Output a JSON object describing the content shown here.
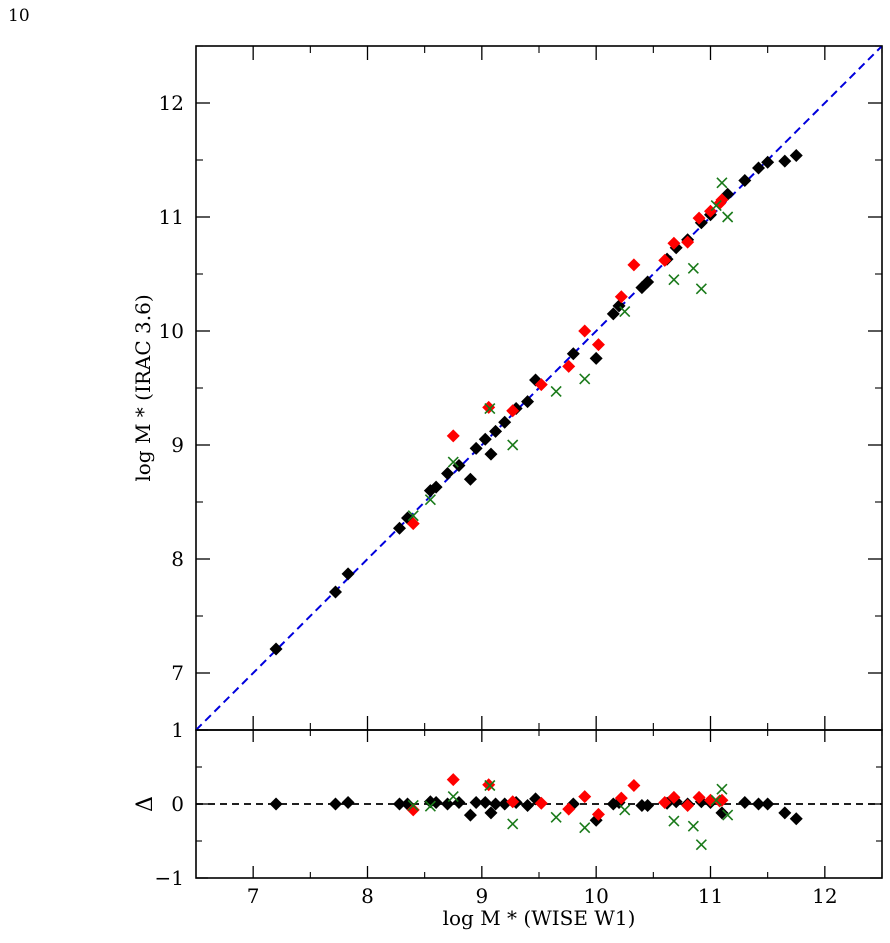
{
  "page": {
    "number": "10"
  },
  "colors": {
    "identity_line": "#0000dd",
    "black": "#000000",
    "red": "#ff0000",
    "green": "#1a7a1a"
  },
  "chart_data": [
    {
      "type": "scatter",
      "title": "",
      "xlabel": "log M * (WISE W1)",
      "ylabel": "log M * (IRAC 3.6)",
      "xlim": [
        6.5,
        12.5
      ],
      "ylim": [
        6.5,
        12.5
      ],
      "xticks": [
        7,
        8,
        9,
        10,
        11,
        12
      ],
      "yticks": [
        7,
        8,
        9,
        10,
        11,
        12
      ],
      "ytick_labels": [
        "7",
        "8",
        "9",
        "10",
        "11",
        "12"
      ],
      "grid": false,
      "reference_line": {
        "style": "dashed",
        "color": "#0000dd",
        "relation": "y = x"
      },
      "series": [
        {
          "marker": "diamond",
          "color": "#000000",
          "points": [
            [
              7.2,
              7.21
            ],
            [
              7.72,
              7.71
            ],
            [
              7.83,
              7.87
            ],
            [
              8.28,
              8.27
            ],
            [
              8.35,
              8.36
            ],
            [
              8.55,
              8.6
            ],
            [
              8.6,
              8.63
            ],
            [
              8.7,
              8.75
            ],
            [
              8.8,
              8.82
            ],
            [
              8.9,
              8.7
            ],
            [
              8.95,
              8.97
            ],
            [
              9.03,
              9.05
            ],
            [
              9.08,
              8.92
            ],
            [
              9.12,
              9.12
            ],
            [
              9.2,
              9.2
            ],
            [
              9.3,
              9.32
            ],
            [
              9.4,
              9.38
            ],
            [
              9.47,
              9.57
            ],
            [
              9.8,
              9.8
            ],
            [
              10.0,
              9.76
            ],
            [
              10.15,
              10.15
            ],
            [
              10.2,
              10.22
            ],
            [
              10.4,
              10.38
            ],
            [
              10.45,
              10.43
            ],
            [
              10.62,
              10.63
            ],
            [
              10.7,
              10.73
            ],
            [
              10.8,
              10.8
            ],
            [
              10.92,
              10.95
            ],
            [
              11.0,
              11.02
            ],
            [
              11.15,
              11.2
            ],
            [
              11.3,
              11.32
            ],
            [
              11.42,
              11.43
            ],
            [
              11.5,
              11.48
            ],
            [
              11.65,
              11.49
            ],
            [
              11.75,
              11.54
            ]
          ]
        },
        {
          "marker": "diamond",
          "color": "#ff0000",
          "points": [
            [
              8.4,
              8.31
            ],
            [
              8.75,
              9.08
            ],
            [
              9.06,
              9.33
            ],
            [
              9.27,
              9.3
            ],
            [
              9.52,
              9.53
            ],
            [
              9.76,
              9.69
            ],
            [
              9.9,
              10.0
            ],
            [
              10.02,
              9.88
            ],
            [
              10.22,
              10.3
            ],
            [
              10.33,
              10.58
            ],
            [
              10.6,
              10.62
            ],
            [
              10.68,
              10.77
            ],
            [
              10.8,
              10.78
            ],
            [
              10.9,
              10.99
            ],
            [
              11.0,
              11.05
            ],
            [
              11.08,
              11.12
            ],
            [
              11.1,
              11.15
            ]
          ]
        },
        {
          "marker": "x",
          "color": "#1a7a1a",
          "points": [
            [
              8.4,
              8.38
            ],
            [
              8.55,
              8.52
            ],
            [
              8.75,
              8.85
            ],
            [
              9.07,
              9.32
            ],
            [
              9.27,
              9.0
            ],
            [
              9.65,
              9.47
            ],
            [
              9.9,
              9.58
            ],
            [
              10.25,
              10.17
            ],
            [
              10.68,
              10.45
            ],
            [
              10.85,
              10.55
            ],
            [
              10.92,
              10.37
            ],
            [
              11.05,
              11.1
            ],
            [
              11.1,
              11.3
            ],
            [
              11.15,
              11.0
            ]
          ]
        }
      ]
    },
    {
      "type": "scatter",
      "title": "",
      "xlabel": "log M * (WISE W1)",
      "ylabel": "Δ",
      "xlim": [
        6.5,
        12.5
      ],
      "ylim": [
        -1,
        1
      ],
      "xticks": [
        7,
        8,
        9,
        10,
        11,
        12
      ],
      "xtick_labels": [
        "7",
        "8",
        "9",
        "10",
        "11",
        "12"
      ],
      "yticks": [
        -1,
        0,
        1
      ],
      "ytick_labels": [
        "−1",
        "0",
        "1"
      ],
      "grid": false,
      "reference_line": {
        "style": "dashed",
        "color": "#000000",
        "relation": "Δ = 0"
      },
      "series": [
        {
          "marker": "diamond",
          "color": "#000000",
          "points": [
            [
              7.2,
              0.0
            ],
            [
              7.72,
              0.0
            ],
            [
              7.83,
              0.02
            ],
            [
              8.28,
              0.0
            ],
            [
              8.35,
              0.0
            ],
            [
              8.55,
              0.03
            ],
            [
              8.6,
              0.02
            ],
            [
              8.7,
              0.0
            ],
            [
              8.8,
              0.02
            ],
            [
              8.9,
              -0.15
            ],
            [
              8.95,
              0.02
            ],
            [
              9.03,
              0.02
            ],
            [
              9.08,
              -0.12
            ],
            [
              9.12,
              0.0
            ],
            [
              9.2,
              0.0
            ],
            [
              9.3,
              0.02
            ],
            [
              9.4,
              -0.02
            ],
            [
              9.47,
              0.07
            ],
            [
              9.8,
              0.0
            ],
            [
              10.0,
              -0.22
            ],
            [
              10.15,
              0.0
            ],
            [
              10.2,
              0.02
            ],
            [
              10.4,
              -0.02
            ],
            [
              10.45,
              -0.02
            ],
            [
              10.62,
              0.01
            ],
            [
              10.7,
              0.03
            ],
            [
              10.8,
              0.0
            ],
            [
              10.92,
              0.03
            ],
            [
              11.0,
              0.02
            ],
            [
              11.1,
              -0.12
            ],
            [
              11.3,
              0.02
            ],
            [
              11.42,
              0.0
            ],
            [
              11.5,
              0.0
            ],
            [
              11.65,
              -0.12
            ],
            [
              11.75,
              -0.2
            ]
          ]
        },
        {
          "marker": "diamond",
          "color": "#ff0000",
          "points": [
            [
              8.4,
              -0.08
            ],
            [
              8.75,
              0.33
            ],
            [
              9.06,
              0.26
            ],
            [
              9.27,
              0.03
            ],
            [
              9.52,
              0.01
            ],
            [
              9.76,
              -0.07
            ],
            [
              9.9,
              0.1
            ],
            [
              10.02,
              -0.14
            ],
            [
              10.22,
              0.08
            ],
            [
              10.33,
              0.25
            ],
            [
              10.6,
              0.02
            ],
            [
              10.68,
              0.09
            ],
            [
              10.8,
              -0.02
            ],
            [
              10.9,
              0.09
            ],
            [
              11.0,
              0.05
            ],
            [
              11.08,
              0.04
            ],
            [
              11.1,
              0.05
            ]
          ]
        },
        {
          "marker": "x",
          "color": "#1a7a1a",
          "points": [
            [
              8.4,
              -0.02
            ],
            [
              8.55,
              -0.03
            ],
            [
              8.75,
              0.1
            ],
            [
              9.07,
              0.25
            ],
            [
              9.27,
              -0.27
            ],
            [
              9.65,
              -0.18
            ],
            [
              9.9,
              -0.32
            ],
            [
              10.25,
              -0.08
            ],
            [
              10.68,
              -0.23
            ],
            [
              10.85,
              -0.3
            ],
            [
              10.92,
              -0.55
            ],
            [
              11.05,
              0.05
            ],
            [
              11.1,
              0.2
            ],
            [
              11.15,
              -0.15
            ]
          ]
        }
      ]
    }
  ]
}
